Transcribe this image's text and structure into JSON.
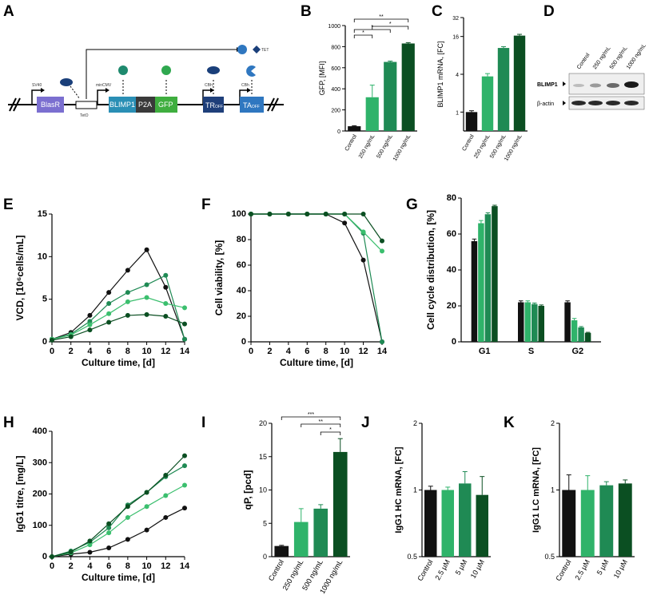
{
  "panels": [
    "A",
    "B",
    "C",
    "D",
    "E",
    "F",
    "G",
    "H",
    "I",
    "J",
    "K"
  ],
  "colors": {
    "black": "#111111",
    "c250": "#2fb36a",
    "c500": "#1f8a54",
    "c1000": "#0b4f22",
    "lightgreen": "#3bbf6e"
  },
  "construct": {
    "elements": [
      "BlasR",
      "BLIMP1",
      "P2A",
      "GFP",
      "TR",
      "TA"
    ],
    "subscripts": [
      "OFF",
      "OFF"
    ],
    "promoters": [
      "SV40",
      "minCMV",
      "CBh",
      "CBh"
    ],
    "operator": "TetO",
    "ligand": "TET"
  },
  "blot": {
    "lanes": [
      "Control",
      "250 ng/mL",
      "500 ng/mL",
      "1000 ng/mL"
    ],
    "rows": [
      "BLIMP1",
      "β-actin"
    ]
  },
  "chart_data": [
    {
      "panel": "B",
      "type": "bar",
      "categories": [
        "Control",
        "250 ng/mL",
        "500 ng/mL",
        "1000 ng/mL"
      ],
      "values": [
        45,
        320,
        655,
        830
      ],
      "errors": [
        5,
        115,
        8,
        8
      ],
      "ylabel": "GFP, [MFI]",
      "ylim": [
        0,
        1000
      ],
      "yticks": [
        "0",
        "200",
        "400",
        "600",
        "800",
        "1000"
      ],
      "significance": [
        "*",
        "*",
        "**",
        "*"
      ]
    },
    {
      "panel": "C",
      "type": "bar",
      "categories": [
        "Control",
        "250 ng/mL",
        "500 ng/mL",
        "1000 ng/mL"
      ],
      "values": [
        1,
        3.7,
        10.5,
        16.5
      ],
      "errors": [
        0.05,
        0.4,
        0.5,
        0.8
      ],
      "ylabel": "BLIMP1 mRNA, [FC]",
      "yscale": "log2",
      "ylim": [
        0.5,
        32
      ],
      "yticks": [
        "1",
        "4",
        "16",
        "32"
      ]
    },
    {
      "panel": "E",
      "type": "line",
      "ylabel": "VCD, [10⁶cells/mL]",
      "xlabel": "Culture time, [d]",
      "xlim": [
        0,
        14
      ],
      "ylim": [
        0,
        15
      ],
      "xticks": [
        "0",
        "2",
        "4",
        "6",
        "8",
        "10",
        "12",
        "14"
      ],
      "yticks": [
        "0",
        "5",
        "10",
        "15"
      ],
      "series": [
        {
          "x": [
            0,
            2,
            4,
            6,
            8,
            10,
            12,
            14
          ],
          "values": [
            0.3,
            1.1,
            3.1,
            5.8,
            8.4,
            10.8,
            6.4,
            0.3
          ]
        },
        {
          "x": [
            0,
            2,
            4,
            6,
            8,
            10,
            12,
            14
          ],
          "values": [
            0.3,
            0.9,
            2.4,
            4.5,
            5.8,
            6.7,
            7.8,
            0.3
          ]
        },
        {
          "x": [
            0,
            2,
            4,
            6,
            8,
            10,
            12,
            14
          ],
          "values": [
            0.3,
            0.8,
            2.0,
            3.3,
            4.7,
            5.2,
            4.5,
            4.0
          ]
        },
        {
          "x": [
            0,
            2,
            4,
            6,
            8,
            10,
            12,
            14
          ],
          "values": [
            0.2,
            0.6,
            1.4,
            2.3,
            3.1,
            3.2,
            3.0,
            2.1
          ]
        }
      ]
    },
    {
      "panel": "F",
      "type": "line",
      "ylabel": "Cell viability, [%]",
      "xlabel": "Culture time, [d]",
      "xlim": [
        0,
        14
      ],
      "ylim": [
        0,
        100
      ],
      "xticks": [
        "0",
        "2",
        "4",
        "6",
        "8",
        "10",
        "12",
        "14"
      ],
      "yticks": [
        "0",
        "20",
        "40",
        "60",
        "80",
        "100"
      ],
      "series": [
        {
          "x": [
            0,
            2,
            4,
            6,
            8,
            10,
            12,
            14
          ],
          "values": [
            100,
            100,
            100,
            100,
            100,
            93,
            64,
            0
          ]
        },
        {
          "x": [
            0,
            2,
            4,
            6,
            8,
            10,
            12,
            14
          ],
          "values": [
            100,
            100,
            100,
            100,
            100,
            100,
            85,
            0
          ]
        },
        {
          "x": [
            0,
            2,
            4,
            6,
            8,
            10,
            12,
            14
          ],
          "values": [
            100,
            100,
            100,
            100,
            100,
            100,
            86,
            71
          ]
        },
        {
          "x": [
            0,
            2,
            4,
            6,
            8,
            10,
            12,
            14
          ],
          "values": [
            100,
            100,
            100,
            100,
            100,
            100,
            100,
            79
          ]
        }
      ]
    },
    {
      "panel": "G",
      "type": "bar",
      "categories": [
        "G1",
        "S",
        "G2"
      ],
      "ylabel": "Cell cycle distribution, [%]",
      "ylim": [
        0,
        80
      ],
      "yticks": [
        "0",
        "20",
        "40",
        "60",
        "80"
      ],
      "series": [
        {
          "values": [
            56,
            22,
            22
          ],
          "errors": [
            1.2,
            0.8,
            0.8
          ]
        },
        {
          "values": [
            66,
            22,
            12
          ],
          "errors": [
            1.5,
            0.8,
            1
          ]
        },
        {
          "values": [
            71,
            21,
            8
          ],
          "errors": [
            0.8,
            0.6,
            0.5
          ]
        },
        {
          "values": [
            75.5,
            20,
            5
          ],
          "errors": [
            0.5,
            0.5,
            0.3
          ]
        }
      ]
    },
    {
      "panel": "H",
      "type": "line",
      "ylabel": "IgG1 titre, [mg/L]",
      "xlabel": "Culture time, [d]",
      "xlim": [
        0,
        14
      ],
      "ylim": [
        0,
        400
      ],
      "xticks": [
        "0",
        "2",
        "4",
        "6",
        "8",
        "10",
        "12",
        "14"
      ],
      "yticks": [
        "0",
        "100",
        "200",
        "300",
        "400"
      ],
      "series": [
        {
          "x": [
            0,
            2,
            4,
            6,
            8,
            10,
            12,
            14
          ],
          "values": [
            0,
            8,
            14,
            28,
            55,
            85,
            125,
            155
          ]
        },
        {
          "x": [
            0,
            2,
            4,
            6,
            8,
            10,
            12,
            14
          ],
          "values": [
            0,
            18,
            46,
            92,
            165,
            205,
            255,
            290
          ]
        },
        {
          "x": [
            0,
            2,
            4,
            6,
            8,
            10,
            12,
            14
          ],
          "values": [
            0,
            12,
            38,
            76,
            125,
            160,
            195,
            228
          ]
        },
        {
          "x": [
            0,
            2,
            4,
            6,
            8,
            10,
            12,
            14
          ],
          "values": [
            0,
            15,
            50,
            105,
            160,
            205,
            260,
            322
          ]
        }
      ]
    },
    {
      "panel": "I",
      "type": "bar",
      "categories": [
        "Control",
        "250 ng/mL",
        "500 ng/mL",
        "1000 ng/mL"
      ],
      "values": [
        1.6,
        5.2,
        7.2,
        15.7
      ],
      "errors": [
        0.1,
        2.0,
        0.6,
        2.0
      ],
      "ylabel": "qP, [pcd]",
      "ylim": [
        0,
        20
      ],
      "yticks": [
        "0",
        "5",
        "10",
        "15",
        "20"
      ],
      "significance": [
        "***",
        "**",
        "*"
      ]
    },
    {
      "panel": "J",
      "type": "bar",
      "categories": [
        "Control",
        "2.5 µM",
        "5 µM",
        "10 µM"
      ],
      "values": [
        1.0,
        1.0,
        1.07,
        0.95
      ],
      "errors": [
        0.04,
        0.03,
        0.14,
        0.2
      ],
      "ylabel": "IgG1 HC mRNA, [FC]",
      "yscale": "log2",
      "ylim": [
        0.5,
        2
      ],
      "yticks": [
        "0.5",
        "1",
        "2"
      ]
    },
    {
      "panel": "K",
      "type": "bar",
      "categories": [
        "Control",
        "2.5 µM",
        "5 µM",
        "10 µM"
      ],
      "values": [
        1.0,
        1.0,
        1.05,
        1.07
      ],
      "errors": [
        0.17,
        0.16,
        0.04,
        0.04
      ],
      "ylabel": "IgG1 LC mRNA, [FC]",
      "yscale": "log2",
      "ylim": [
        0.5,
        2
      ],
      "yticks": [
        "0.5",
        "1",
        "2"
      ]
    }
  ]
}
